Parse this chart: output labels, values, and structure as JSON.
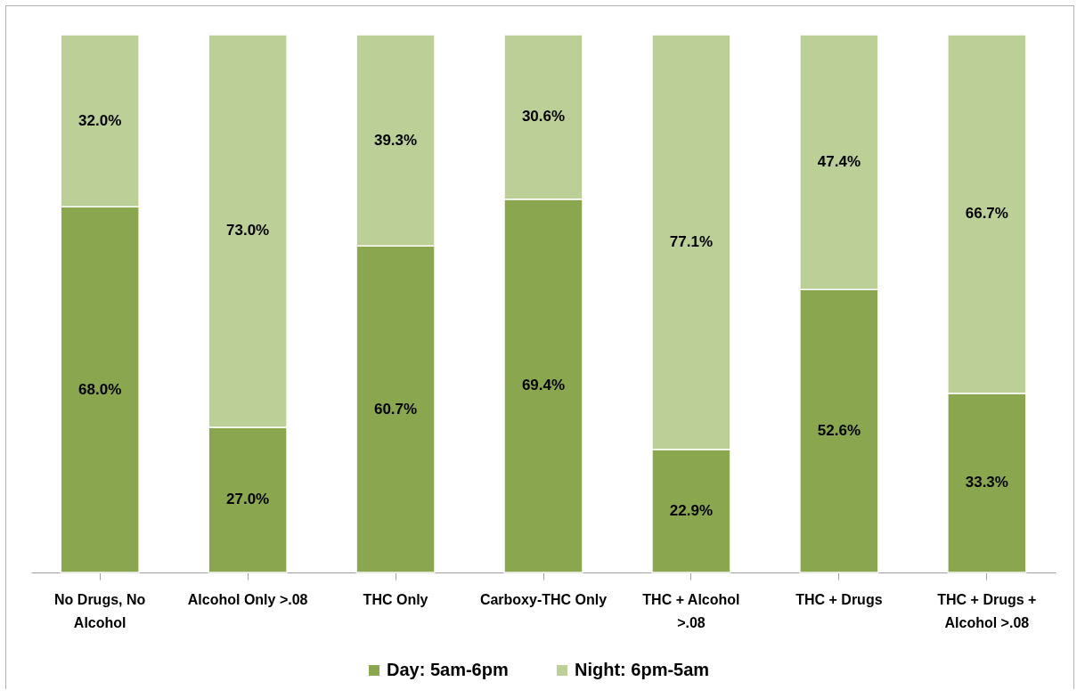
{
  "chart_data": {
    "type": "bar",
    "stacked": true,
    "tick_labels": "x",
    "legend": "bottom",
    "categories": [
      "No Drugs, No Alcohol",
      "Alcohol Only >.08",
      "THC Only",
      "Carboxy-THC Only",
      "THC + Alcohol >.08",
      "THC + Drugs",
      "THC + Drugs + Alcohol >.08"
    ],
    "series": [
      {
        "name": "Day: 5am-6pm",
        "color": "#8aa64f",
        "values": [
          68.0,
          27.0,
          60.7,
          69.4,
          22.9,
          52.6,
          33.3
        ],
        "value_labels": [
          "68.0%",
          "27.0%",
          "60.7%",
          "69.4%",
          "22.9%",
          "52.6%",
          "33.3%"
        ]
      },
      {
        "name": "Night: 6pm-5am",
        "color": "#bbcf97",
        "values": [
          32.0,
          73.0,
          39.3,
          30.6,
          77.1,
          47.4,
          66.7
        ],
        "value_labels": [
          "32.0%",
          "73.0%",
          "39.3%",
          "30.6%",
          "77.1%",
          "47.4%",
          "66.7%"
        ]
      }
    ]
  }
}
